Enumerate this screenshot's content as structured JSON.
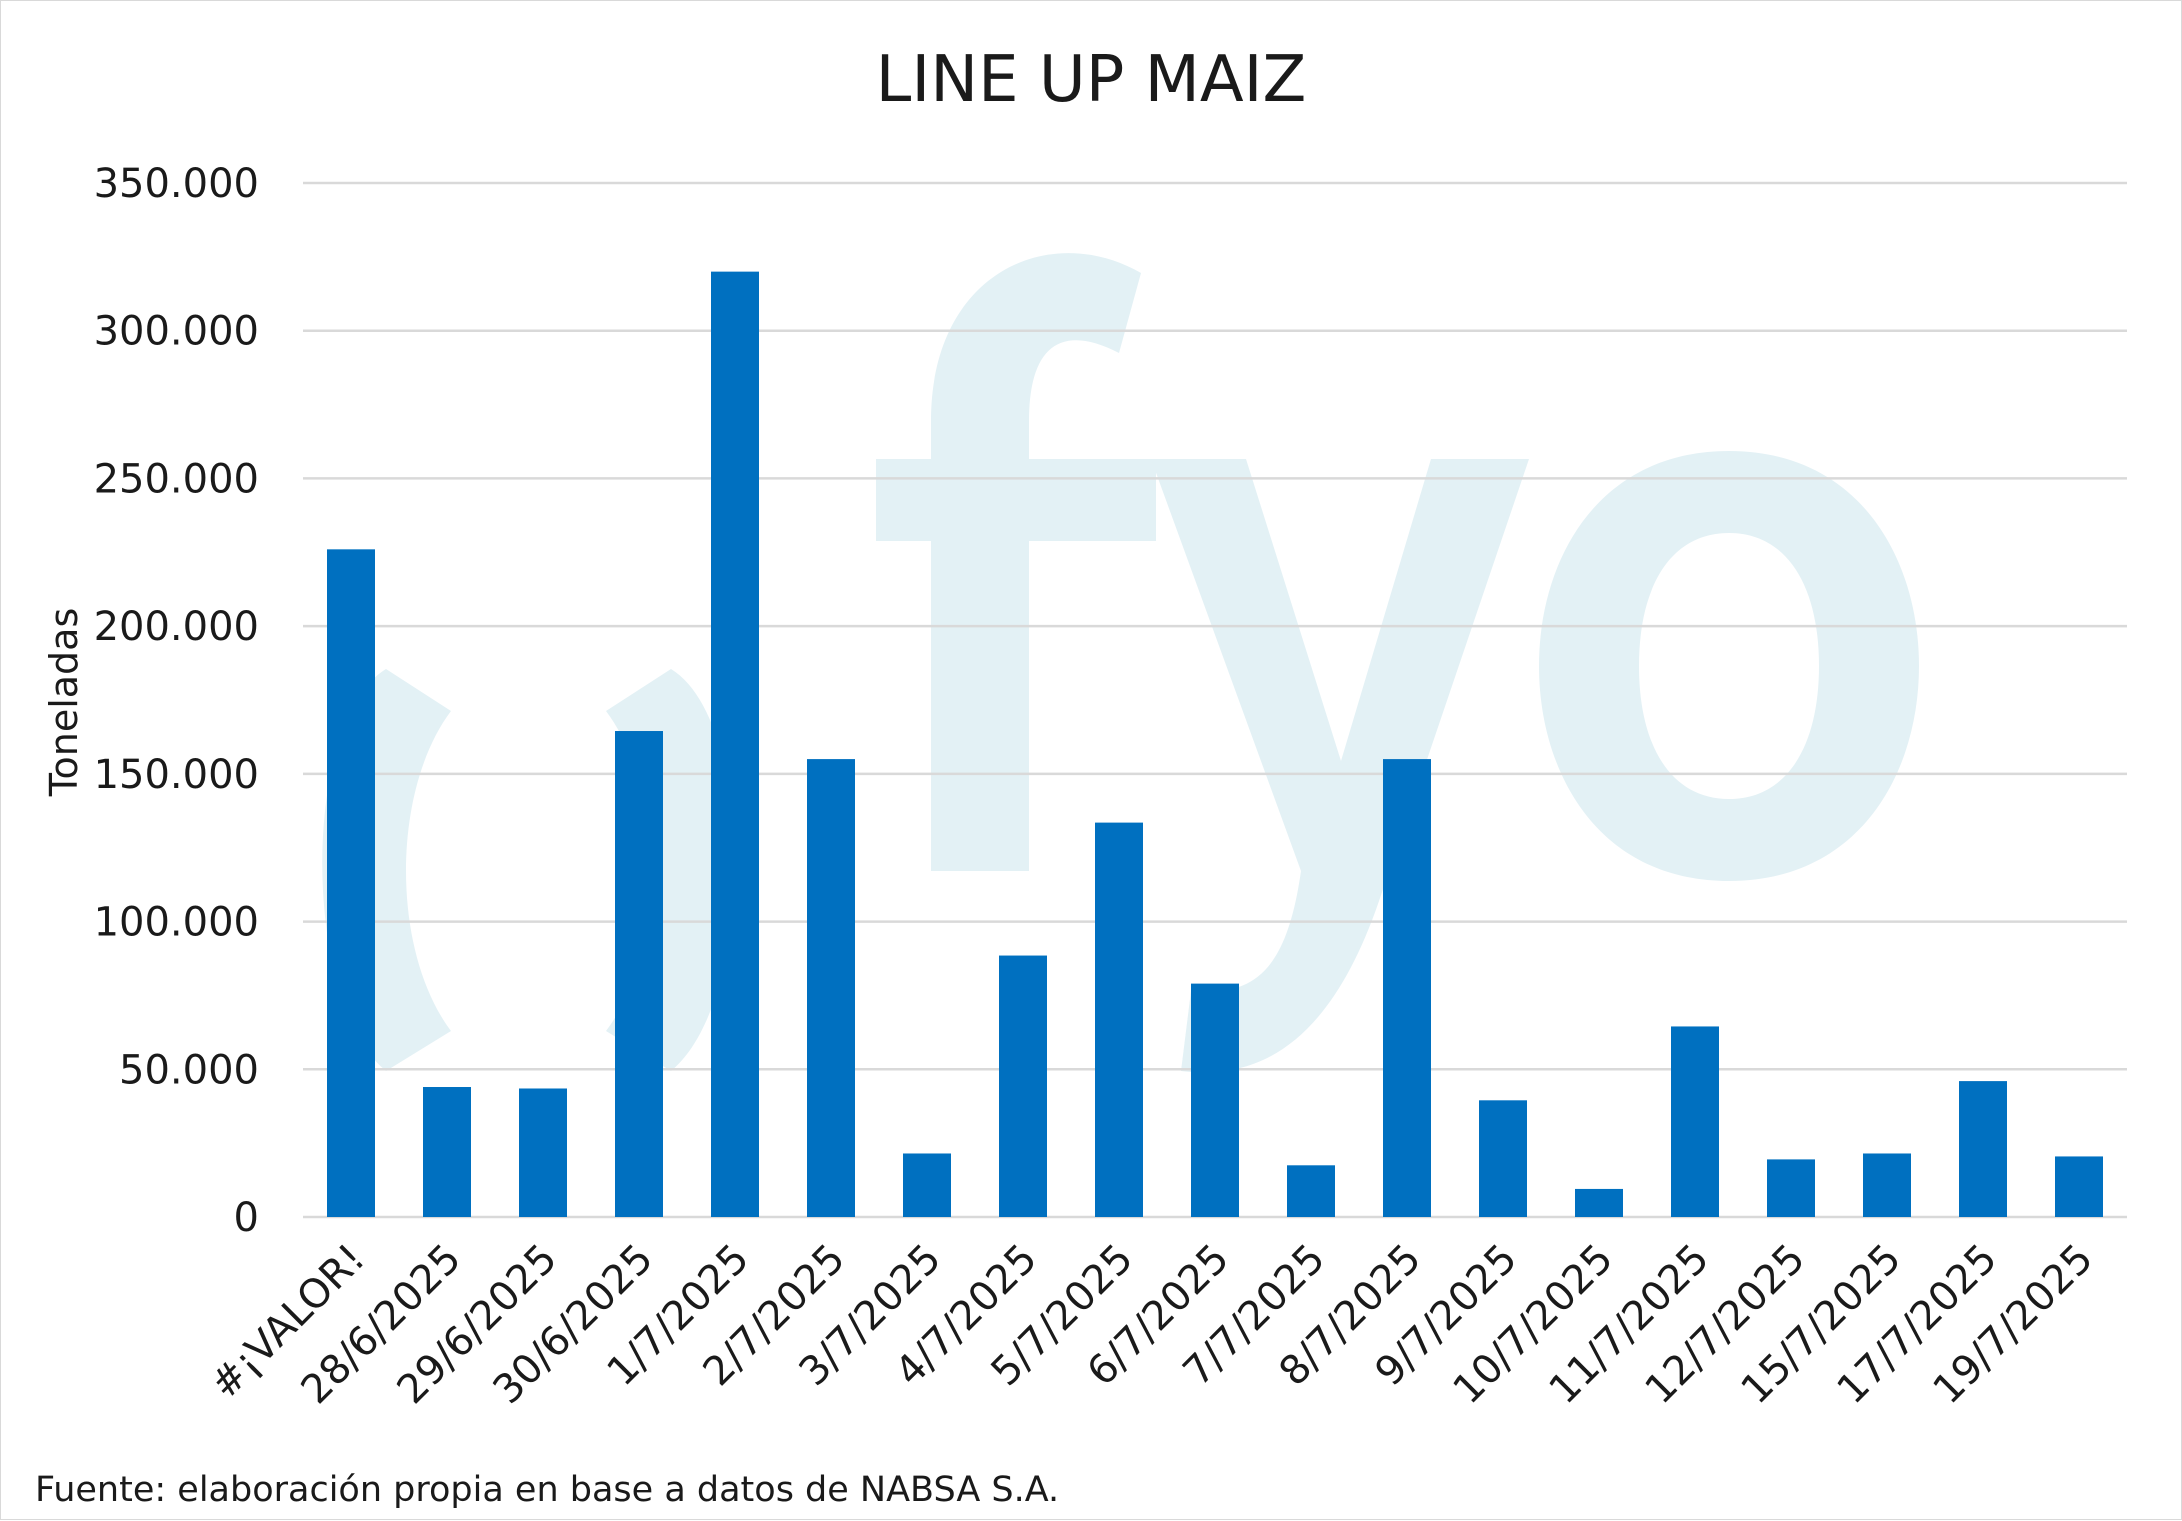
{
  "colors": {
    "bar": "#0070c0",
    "grid": "#d9d9d9",
    "watermark": "#e3f1f5",
    "text": "#1a1a1a"
  },
  "watermark_icon": "fyo-logo-watermark",
  "source": "Fuente: elaboración propia en base a datos de NABSA S.A.",
  "chart_data": {
    "type": "bar",
    "title": "LINE UP MAIZ",
    "xlabel": "",
    "ylabel": "Toneladas",
    "ylim": [
      0,
      350000
    ],
    "yticks": [
      0,
      50000,
      100000,
      150000,
      200000,
      250000,
      300000,
      350000
    ],
    "ytick_labels": [
      "0",
      "50.000",
      "100.000",
      "150.000",
      "200.000",
      "250.000",
      "300.000",
      "350.000"
    ],
    "grid": true,
    "legend": "none",
    "categories": [
      "#¡VALOR!",
      "28/6/2025",
      "29/6/2025",
      "30/6/2025",
      "1/7/2025",
      "2/7/2025",
      "3/7/2025",
      "4/7/2025",
      "5/7/2025",
      "6/7/2025",
      "7/7/2025",
      "8/7/2025",
      "9/7/2025",
      "10/7/2025",
      "11/7/2025",
      "12/7/2025",
      "15/7/2025",
      "17/7/2025",
      "19/7/2025"
    ],
    "values": [
      226000,
      44000,
      43500,
      164500,
      320000,
      155000,
      21500,
      88500,
      133500,
      79000,
      17500,
      155000,
      39500,
      9500,
      64500,
      19500,
      21500,
      46000,
      20500
    ]
  }
}
